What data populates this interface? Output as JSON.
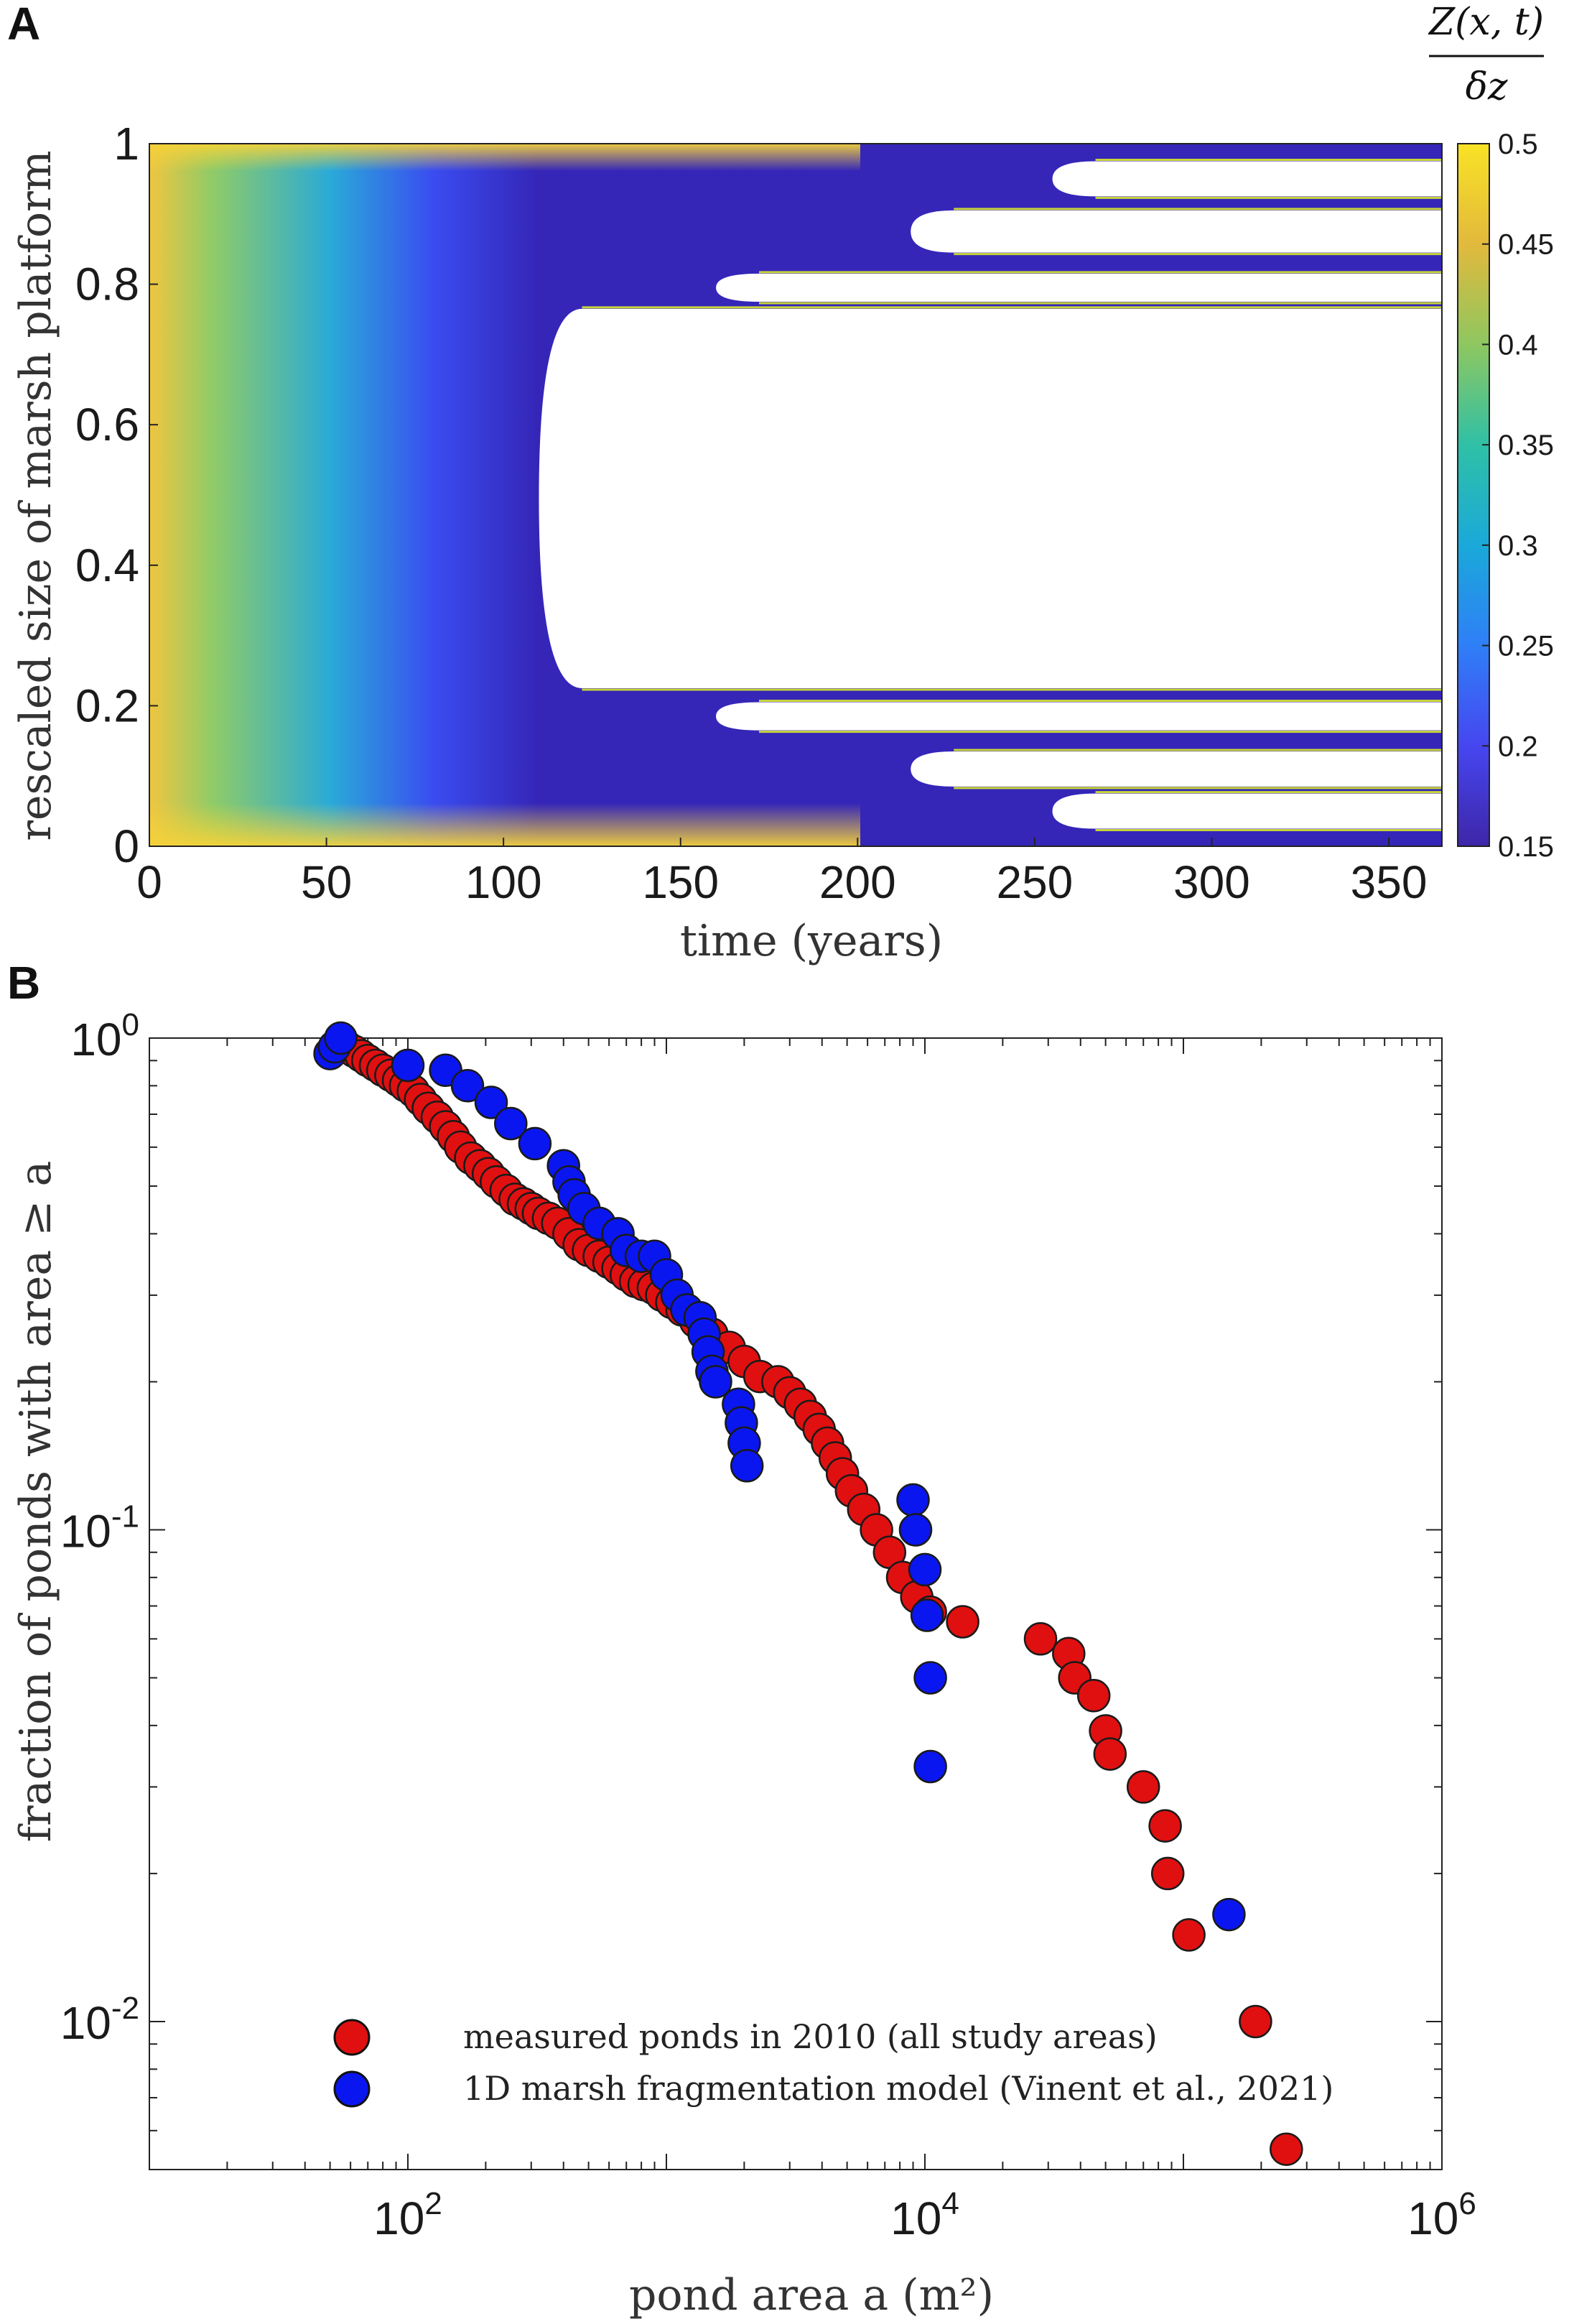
{
  "chart_data": [
    {
      "panel_label": "A",
      "type": "heatmap",
      "title": "",
      "xlabel": "time (years)",
      "ylabel": "rescaled size of marsh platform",
      "xlim": [
        0,
        365
      ],
      "ylim": [
        0,
        1
      ],
      "xticks": [
        "0",
        "50",
        "100",
        "150",
        "200",
        "250",
        "300",
        "350"
      ],
      "yticks": [
        "0",
        "0.2",
        "0.4",
        "0.6",
        "0.8",
        "1"
      ],
      "colorbar": {
        "label_top": "Z(x, t)",
        "label_bottom": "δz",
        "range": [
          0.15,
          0.5
        ],
        "ticks": [
          "0.5",
          "0.45",
          "0.4",
          "0.35",
          "0.3",
          "0.25",
          "0.2",
          "0.15"
        ],
        "colors": [
          "#3e26a8",
          "#4646f0",
          "#2f7ff7",
          "#1aa9d9",
          "#2fc0a6",
          "#8ec760",
          "#e2b93c",
          "#f9e225"
        ]
      },
      "ponds": [
        {
          "y_low": 0.225,
          "y_high": 0.765,
          "t_start": 110
        },
        {
          "y_low": 0.775,
          "y_high": 0.815,
          "t_start": 160
        },
        {
          "y_low": 0.845,
          "y_high": 0.905,
          "t_start": 215
        },
        {
          "y_low": 0.925,
          "y_high": 0.975,
          "t_start": 255
        },
        {
          "y_low": 0.165,
          "y_high": 0.205,
          "t_start": 160
        },
        {
          "y_low": 0.085,
          "y_high": 0.135,
          "t_start": 215
        },
        {
          "y_low": 0.025,
          "y_high": 0.075,
          "t_start": 255
        }
      ]
    },
    {
      "panel_label": "B",
      "type": "scatter",
      "xscale": "log",
      "yscale": "log",
      "xlabel": "pond area a (m²)",
      "ylabel": "fraction of ponds with area ≥ a",
      "xlim": [
        10,
        1000000
      ],
      "ylim": [
        0.005,
        1
      ],
      "xticks": [
        {
          "value": 100,
          "base": "10",
          "exp": "2"
        },
        {
          "value": 10000,
          "base": "10",
          "exp": "4"
        },
        {
          "value": 1000000,
          "base": "10",
          "exp": "6"
        }
      ],
      "yticks": [
        {
          "value": 1,
          "base": "10",
          "exp": "0"
        },
        {
          "value": 0.1,
          "base": "10",
          "exp": "-1"
        },
        {
          "value": 0.01,
          "base": "10",
          "exp": "-2"
        }
      ],
      "legend_position": "bottom-left",
      "series": [
        {
          "name": "measured ponds in 2010 (all study areas)",
          "color": "#e01010",
          "points": [
            [
              55,
              0.98
            ],
            [
              58,
              0.96
            ],
            [
              62,
              0.94
            ],
            [
              66,
              0.92
            ],
            [
              70,
              0.9
            ],
            [
              75,
              0.88
            ],
            [
              80,
              0.86
            ],
            [
              86,
              0.84
            ],
            [
              92,
              0.82
            ],
            [
              98,
              0.8
            ],
            [
              105,
              0.78
            ],
            [
              112,
              0.75
            ],
            [
              120,
              0.72
            ],
            [
              130,
              0.69
            ],
            [
              140,
              0.66
            ],
            [
              150,
              0.63
            ],
            [
              160,
              0.6
            ],
            [
              175,
              0.57
            ],
            [
              190,
              0.55
            ],
            [
              205,
              0.53
            ],
            [
              220,
              0.51
            ],
            [
              240,
              0.49
            ],
            [
              260,
              0.47
            ],
            [
              280,
              0.46
            ],
            [
              300,
              0.45
            ],
            [
              320,
              0.44
            ],
            [
              350,
              0.43
            ],
            [
              380,
              0.42
            ],
            [
              420,
              0.4
            ],
            [
              460,
              0.38
            ],
            [
              500,
              0.37
            ],
            [
              550,
              0.36
            ],
            [
              600,
              0.35
            ],
            [
              650,
              0.34
            ],
            [
              700,
              0.33
            ],
            [
              760,
              0.32
            ],
            [
              820,
              0.315
            ],
            [
              890,
              0.31
            ],
            [
              960,
              0.3
            ],
            [
              1050,
              0.29
            ],
            [
              1150,
              0.28
            ],
            [
              1300,
              0.265
            ],
            [
              1500,
              0.25
            ],
            [
              1750,
              0.235
            ],
            [
              2000,
              0.22
            ],
            [
              2300,
              0.205
            ],
            [
              2700,
              0.2
            ],
            [
              3000,
              0.19
            ],
            [
              3300,
              0.18
            ],
            [
              3600,
              0.17
            ],
            [
              3900,
              0.16
            ],
            [
              4200,
              0.15
            ],
            [
              4500,
              0.14
            ],
            [
              4800,
              0.13
            ],
            [
              5200,
              0.12
            ],
            [
              5800,
              0.11
            ],
            [
              6500,
              0.1
            ],
            [
              7300,
              0.09
            ],
            [
              8200,
              0.08
            ],
            [
              9300,
              0.073
            ],
            [
              10500,
              0.068
            ],
            [
              14000,
              0.065
            ],
            [
              28000,
              0.06
            ],
            [
              36000,
              0.056
            ],
            [
              38000,
              0.05
            ],
            [
              45000,
              0.046
            ],
            [
              50000,
              0.039
            ],
            [
              52000,
              0.035
            ],
            [
              70000,
              0.03
            ],
            [
              85000,
              0.025
            ],
            [
              87000,
              0.02
            ],
            [
              105000,
              0.015
            ],
            [
              190000,
              0.01
            ],
            [
              250000,
              0.0055
            ]
          ]
        },
        {
          "name": "1D marsh fragmentation model (Vinent et al., 2021)",
          "color": "#0a16f0",
          "points": [
            [
              50,
              0.93
            ],
            [
              52,
              0.96
            ],
            [
              55,
              1.0
            ],
            [
              100,
              0.88
            ],
            [
              140,
              0.86
            ],
            [
              170,
              0.8
            ],
            [
              210,
              0.74
            ],
            [
              250,
              0.67
            ],
            [
              310,
              0.61
            ],
            [
              400,
              0.55
            ],
            [
              420,
              0.51
            ],
            [
              440,
              0.48
            ],
            [
              480,
              0.45
            ],
            [
              550,
              0.42
            ],
            [
              650,
              0.4
            ],
            [
              700,
              0.37
            ],
            [
              800,
              0.36
            ],
            [
              900,
              0.36
            ],
            [
              1000,
              0.33
            ],
            [
              1100,
              0.3
            ],
            [
              1200,
              0.28
            ],
            [
              1350,
              0.27
            ],
            [
              1400,
              0.25
            ],
            [
              1450,
              0.23
            ],
            [
              1500,
              0.21
            ],
            [
              1550,
              0.2
            ],
            [
              1900,
              0.18
            ],
            [
              1950,
              0.165
            ],
            [
              2000,
              0.15
            ],
            [
              2050,
              0.135
            ],
            [
              9000,
              0.115
            ],
            [
              9200,
              0.1
            ],
            [
              10000,
              0.083
            ],
            [
              10200,
              0.067
            ],
            [
              10500,
              0.05
            ],
            [
              10500,
              0.033
            ],
            [
              150000,
              0.0165
            ]
          ]
        }
      ]
    }
  ]
}
